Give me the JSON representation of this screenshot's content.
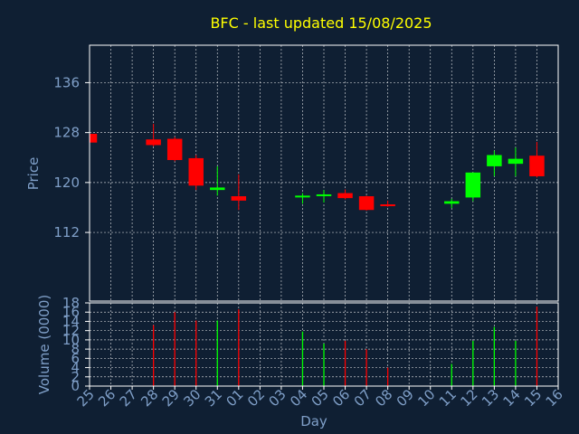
{
  "colors": {
    "background": "#0f1f33",
    "title": "#ffff00",
    "axis_text": "#7f9fc8",
    "frame": "#ffffff",
    "grid": "#ffffff",
    "up": "#00ff00",
    "down": "#ff0000"
  },
  "chart_data": [
    {
      "type": "candlestick",
      "title": "BFC - last updated 15/08/2025",
      "ylabel": "Price",
      "ylim": [
        101,
        142
      ],
      "yticks": [
        "112",
        "120",
        "128",
        "136"
      ],
      "grid": true,
      "categories": [
        "25",
        "26",
        "27",
        "28",
        "29",
        "30",
        "31",
        "01",
        "02",
        "03",
        "04",
        "05",
        "06",
        "07",
        "08",
        "09",
        "10",
        "11",
        "12",
        "13",
        "14",
        "15",
        "16"
      ],
      "candles": [
        {
          "x": "25",
          "open": 127.8,
          "close": 126.4,
          "high": 127.8,
          "low": 126.4
        },
        {
          "x": "28",
          "open": 126.9,
          "close": 126.0,
          "high": 129.4,
          "low": 125.8
        },
        {
          "x": "29",
          "open": 127.0,
          "close": 123.6,
          "high": 127.3,
          "low": 123.4
        },
        {
          "x": "30",
          "open": 123.9,
          "close": 119.5,
          "high": 124.4,
          "low": 118.8
        },
        {
          "x": "31",
          "open": 118.8,
          "close": 119.2,
          "high": 122.6,
          "low": 117.9
        },
        {
          "x": "01",
          "open": 117.8,
          "close": 117.1,
          "high": 121.3,
          "low": 115.6
        },
        {
          "x": "04",
          "open": 117.7,
          "close": 117.9,
          "high": 118.3,
          "low": 116.6
        },
        {
          "x": "05",
          "open": 117.9,
          "close": 118.1,
          "high": 118.8,
          "low": 116.8
        },
        {
          "x": "06",
          "open": 118.3,
          "close": 117.5,
          "high": 118.9,
          "low": 117.3
        },
        {
          "x": "07",
          "open": 117.8,
          "close": 115.6,
          "high": 117.9,
          "low": 115.5
        },
        {
          "x": "08",
          "open": 116.5,
          "close": 116.3,
          "high": 117.1,
          "low": 116.1
        },
        {
          "x": "11",
          "open": 116.6,
          "close": 117.0,
          "high": 117.4,
          "low": 115.9
        },
        {
          "x": "12",
          "open": 117.6,
          "close": 121.6,
          "high": 121.6,
          "low": 117.0
        },
        {
          "x": "13",
          "open": 122.6,
          "close": 124.4,
          "high": 125.1,
          "low": 121.0
        },
        {
          "x": "14",
          "open": 123.0,
          "close": 123.8,
          "high": 125.6,
          "low": 121.0
        },
        {
          "x": "15",
          "open": 124.3,
          "close": 121.0,
          "high": 126.5,
          "low": 120.8
        }
      ]
    },
    {
      "type": "bar",
      "ylabel": "Volume (0000)",
      "xlabel": "Day",
      "ylim": [
        0,
        18
      ],
      "yticks": [
        "0",
        "2",
        "4",
        "6",
        "8",
        "10",
        "12",
        "14",
        "16",
        "18"
      ],
      "grid": true,
      "categories": [
        "25",
        "26",
        "27",
        "28",
        "29",
        "30",
        "31",
        "01",
        "02",
        "03",
        "04",
        "05",
        "06",
        "07",
        "08",
        "09",
        "10",
        "11",
        "12",
        "13",
        "14",
        "15",
        "16"
      ],
      "bars": [
        {
          "x": "28",
          "value": 13.2,
          "direction": "down"
        },
        {
          "x": "29",
          "value": 16.0,
          "direction": "down"
        },
        {
          "x": "30",
          "value": 14.2,
          "direction": "down"
        },
        {
          "x": "31",
          "value": 14.2,
          "direction": "up"
        },
        {
          "x": "01",
          "value": 16.6,
          "direction": "down"
        },
        {
          "x": "04",
          "value": 11.8,
          "direction": "up"
        },
        {
          "x": "05",
          "value": 9.2,
          "direction": "up"
        },
        {
          "x": "06",
          "value": 9.8,
          "direction": "down"
        },
        {
          "x": "07",
          "value": 8.0,
          "direction": "down"
        },
        {
          "x": "08",
          "value": 4.0,
          "direction": "down"
        },
        {
          "x": "11",
          "value": 4.8,
          "direction": "up"
        },
        {
          "x": "12",
          "value": 9.8,
          "direction": "up"
        },
        {
          "x": "13",
          "value": 12.8,
          "direction": "up"
        },
        {
          "x": "14",
          "value": 9.8,
          "direction": "up"
        },
        {
          "x": "15",
          "value": 17.2,
          "direction": "down"
        }
      ]
    }
  ]
}
